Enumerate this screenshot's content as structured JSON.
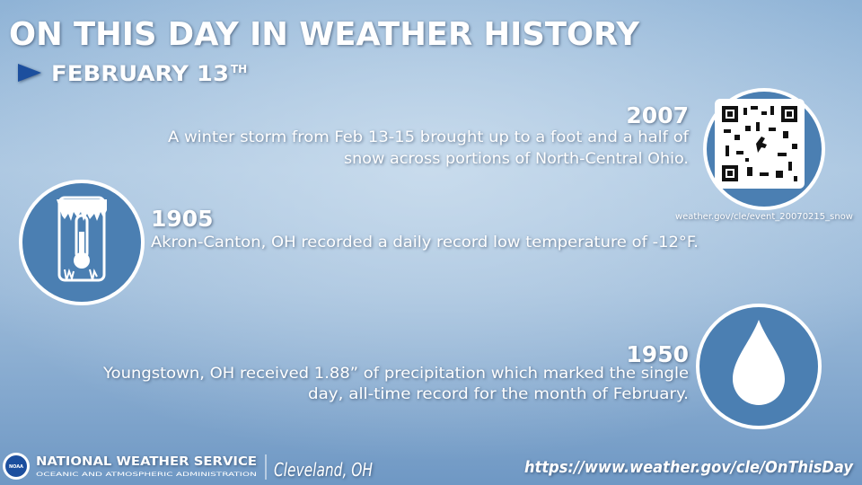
{
  "header": {
    "title": "ON THIS DAY IN WEATHER HISTORY",
    "date": "FEBRUARY 13",
    "date_suffix": "TH"
  },
  "events": [
    {
      "year": "2007",
      "lines": [
        "A winter storm from Feb 13-15 brought up to a foot and a half of",
        "snow across portions of North-Central Ohio."
      ],
      "link": "weather.gov/cle/event_20070215_snow"
    },
    {
      "year": "1905",
      "lines": [
        "Akron-Canton, OH recorded a daily record low temperature of -12°F."
      ]
    },
    {
      "year": "1950",
      "lines": [
        "Youngstown, OH received 1.88” of precipitation which marked the single",
        "day, all-time record for the month of February."
      ]
    }
  ],
  "footer": {
    "logo": "NOAA",
    "agency": "NATIONAL WEATHER SERVICE",
    "agency_sub": "OCEANIC AND ATMOSPHERIC ADMINISTRATION",
    "office": "Cleveland, OH",
    "url": "https://www.weather.gov/cle/OnThisDay"
  }
}
